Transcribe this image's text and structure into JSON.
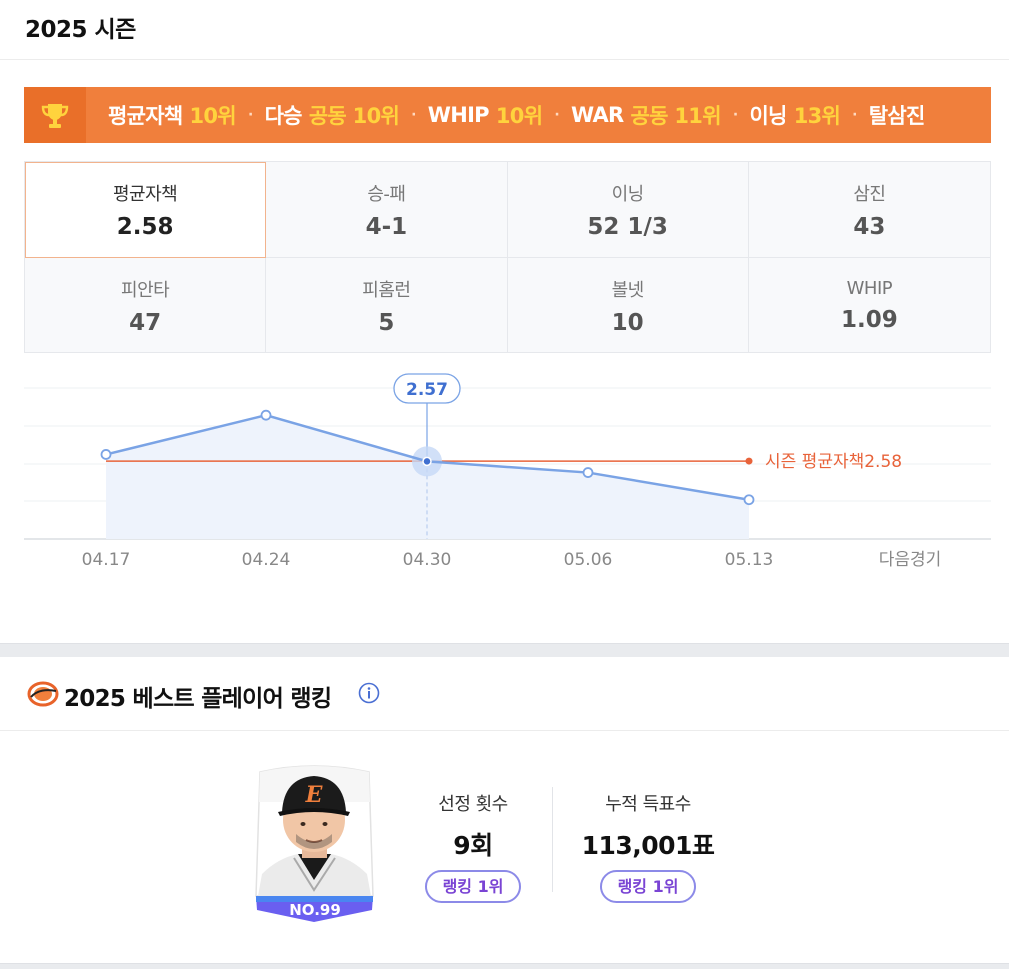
{
  "season": {
    "title": "2025 시즌"
  },
  "ranking_banner": {
    "items": [
      {
        "name": "평균자책",
        "rank": "10위"
      },
      {
        "name": "다승",
        "rank": "공동 10위"
      },
      {
        "name": "WHIP",
        "rank": "10위"
      },
      {
        "name": "WAR",
        "rank": "공동 11위"
      },
      {
        "name": "이닝",
        "rank": "13위"
      },
      {
        "name": "탈삼진",
        "rank": ""
      }
    ],
    "separator": "·"
  },
  "stats": [
    {
      "label": "평균자책",
      "value": "2.58",
      "active": true
    },
    {
      "label": "승-패",
      "value": "4-1"
    },
    {
      "label": "이닝",
      "value": "52 1/3"
    },
    {
      "label": "삼진",
      "value": "43"
    },
    {
      "label": "피안타",
      "value": "47"
    },
    {
      "label": "피홈런",
      "value": "5"
    },
    {
      "label": "볼넷",
      "value": "10"
    },
    {
      "label": "WHIP",
      "value": "1.09"
    }
  ],
  "chart_data": {
    "type": "line",
    "x": [
      "04.17",
      "04.24",
      "04.30",
      "05.06",
      "05.13",
      "다음경기"
    ],
    "series": [
      {
        "values": [
          2.8,
          4.1,
          2.57,
          2.2,
          1.3,
          null
        ]
      }
    ],
    "reference_line": {
      "label": "시즌 평균자책2.58",
      "value": 2.58
    },
    "highlight": {
      "x": "04.30",
      "label": "2.57"
    },
    "ylim": [
      0,
      5
    ],
    "grid": true,
    "colors": {
      "line": "#7aa3e5",
      "area": "#eef3fc",
      "reference": "#e8633a"
    }
  },
  "best_player": {
    "title": "2025 베스트 플레이어 랭킹",
    "card_number": "NO.99",
    "selection": {
      "label": "선정 횟수",
      "value": "9회",
      "rank": "랭킹 1위"
    },
    "votes": {
      "label": "누적 득표수",
      "value": "113,001표",
      "rank": "랭킹 1위"
    }
  }
}
